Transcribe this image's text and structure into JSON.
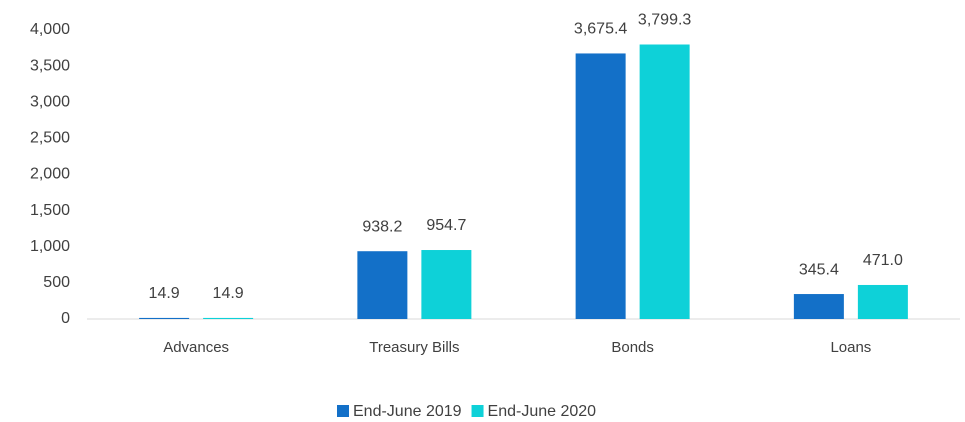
{
  "chart_data": {
    "type": "bar",
    "categories": [
      "Advances",
      "Treasury Bills",
      "Bonds",
      "Loans"
    ],
    "series": [
      {
        "name": "End-June 2019",
        "color": "#1370c8",
        "values": [
          14.9,
          938.2,
          3675.4,
          345.4
        ],
        "value_labels": [
          "14.9",
          "938.2",
          "3,675.4",
          "345.4"
        ]
      },
      {
        "name": "End-June 2020",
        "color": "#0ed1d8",
        "values": [
          14.9,
          954.7,
          3799.3,
          471.0
        ],
        "value_labels": [
          "14.9",
          "954.7",
          "3,799.3",
          "471.0"
        ]
      }
    ],
    "ylim": [
      0,
      4000
    ],
    "yticks": [
      0,
      500,
      {
        "value": 1000,
        "label": "1,000"
      },
      {
        "value": 1500,
        "label": "1,500"
      },
      {
        "value": 2000,
        "label": "2,000"
      },
      {
        "value": 2500,
        "label": "2,500"
      },
      {
        "value": 3000,
        "label": "3,000"
      },
      {
        "value": 3500,
        "label": "3,500"
      },
      {
        "value": 4000,
        "label": "4,000"
      }
    ],
    "grid": false,
    "legend": "bottom"
  }
}
